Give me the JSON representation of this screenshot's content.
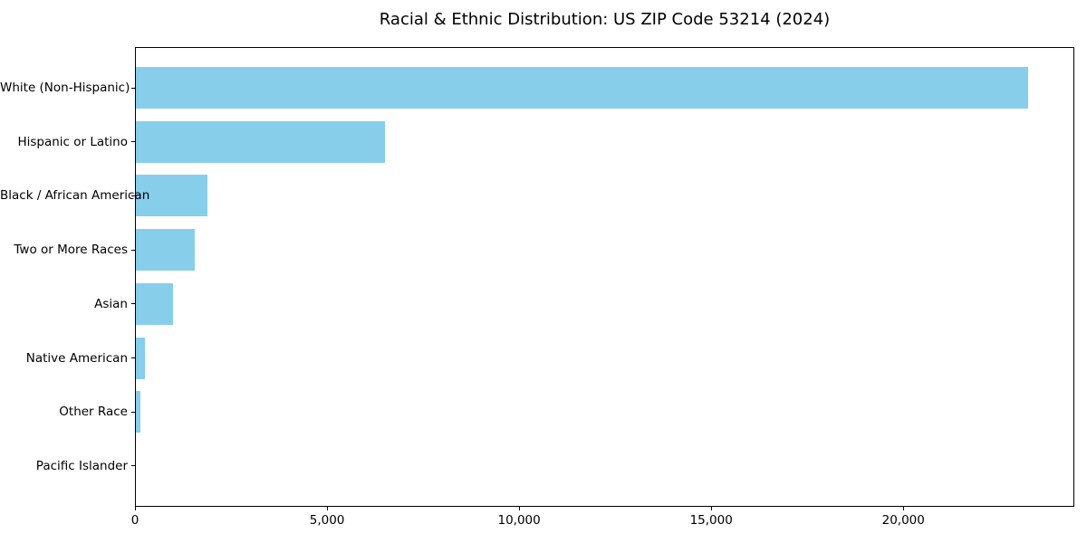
{
  "title": "Racial & Ethnic Distribution: US ZIP Code 53214 (2024)",
  "colors": {
    "bar": "#87CEEB",
    "text": "#000000",
    "frame": "#000000",
    "background": "#FFFFFF"
  },
  "chart_data": {
    "type": "bar",
    "orientation": "horizontal",
    "title": "Racial & Ethnic Distribution: US ZIP Code 53214 (2024)",
    "xlabel": "",
    "ylabel": "",
    "categories": [
      "White (Non-Hispanic)",
      "Hispanic or Latino",
      "Black / African American",
      "Two or More Races",
      "Asian",
      "Native American",
      "Other Race",
      "Pacific Islander"
    ],
    "values": [
      23250,
      6510,
      1890,
      1560,
      990,
      250,
      145,
      10
    ],
    "xlim": [
      0,
      24450
    ],
    "x_ticks": [
      0,
      5000,
      10000,
      15000,
      20000
    ],
    "x_tick_labels": [
      "0",
      "5,000",
      "10,000",
      "15,000",
      "20,000"
    ],
    "grid": false,
    "legend": null,
    "bar_color": "#87CEEB"
  }
}
